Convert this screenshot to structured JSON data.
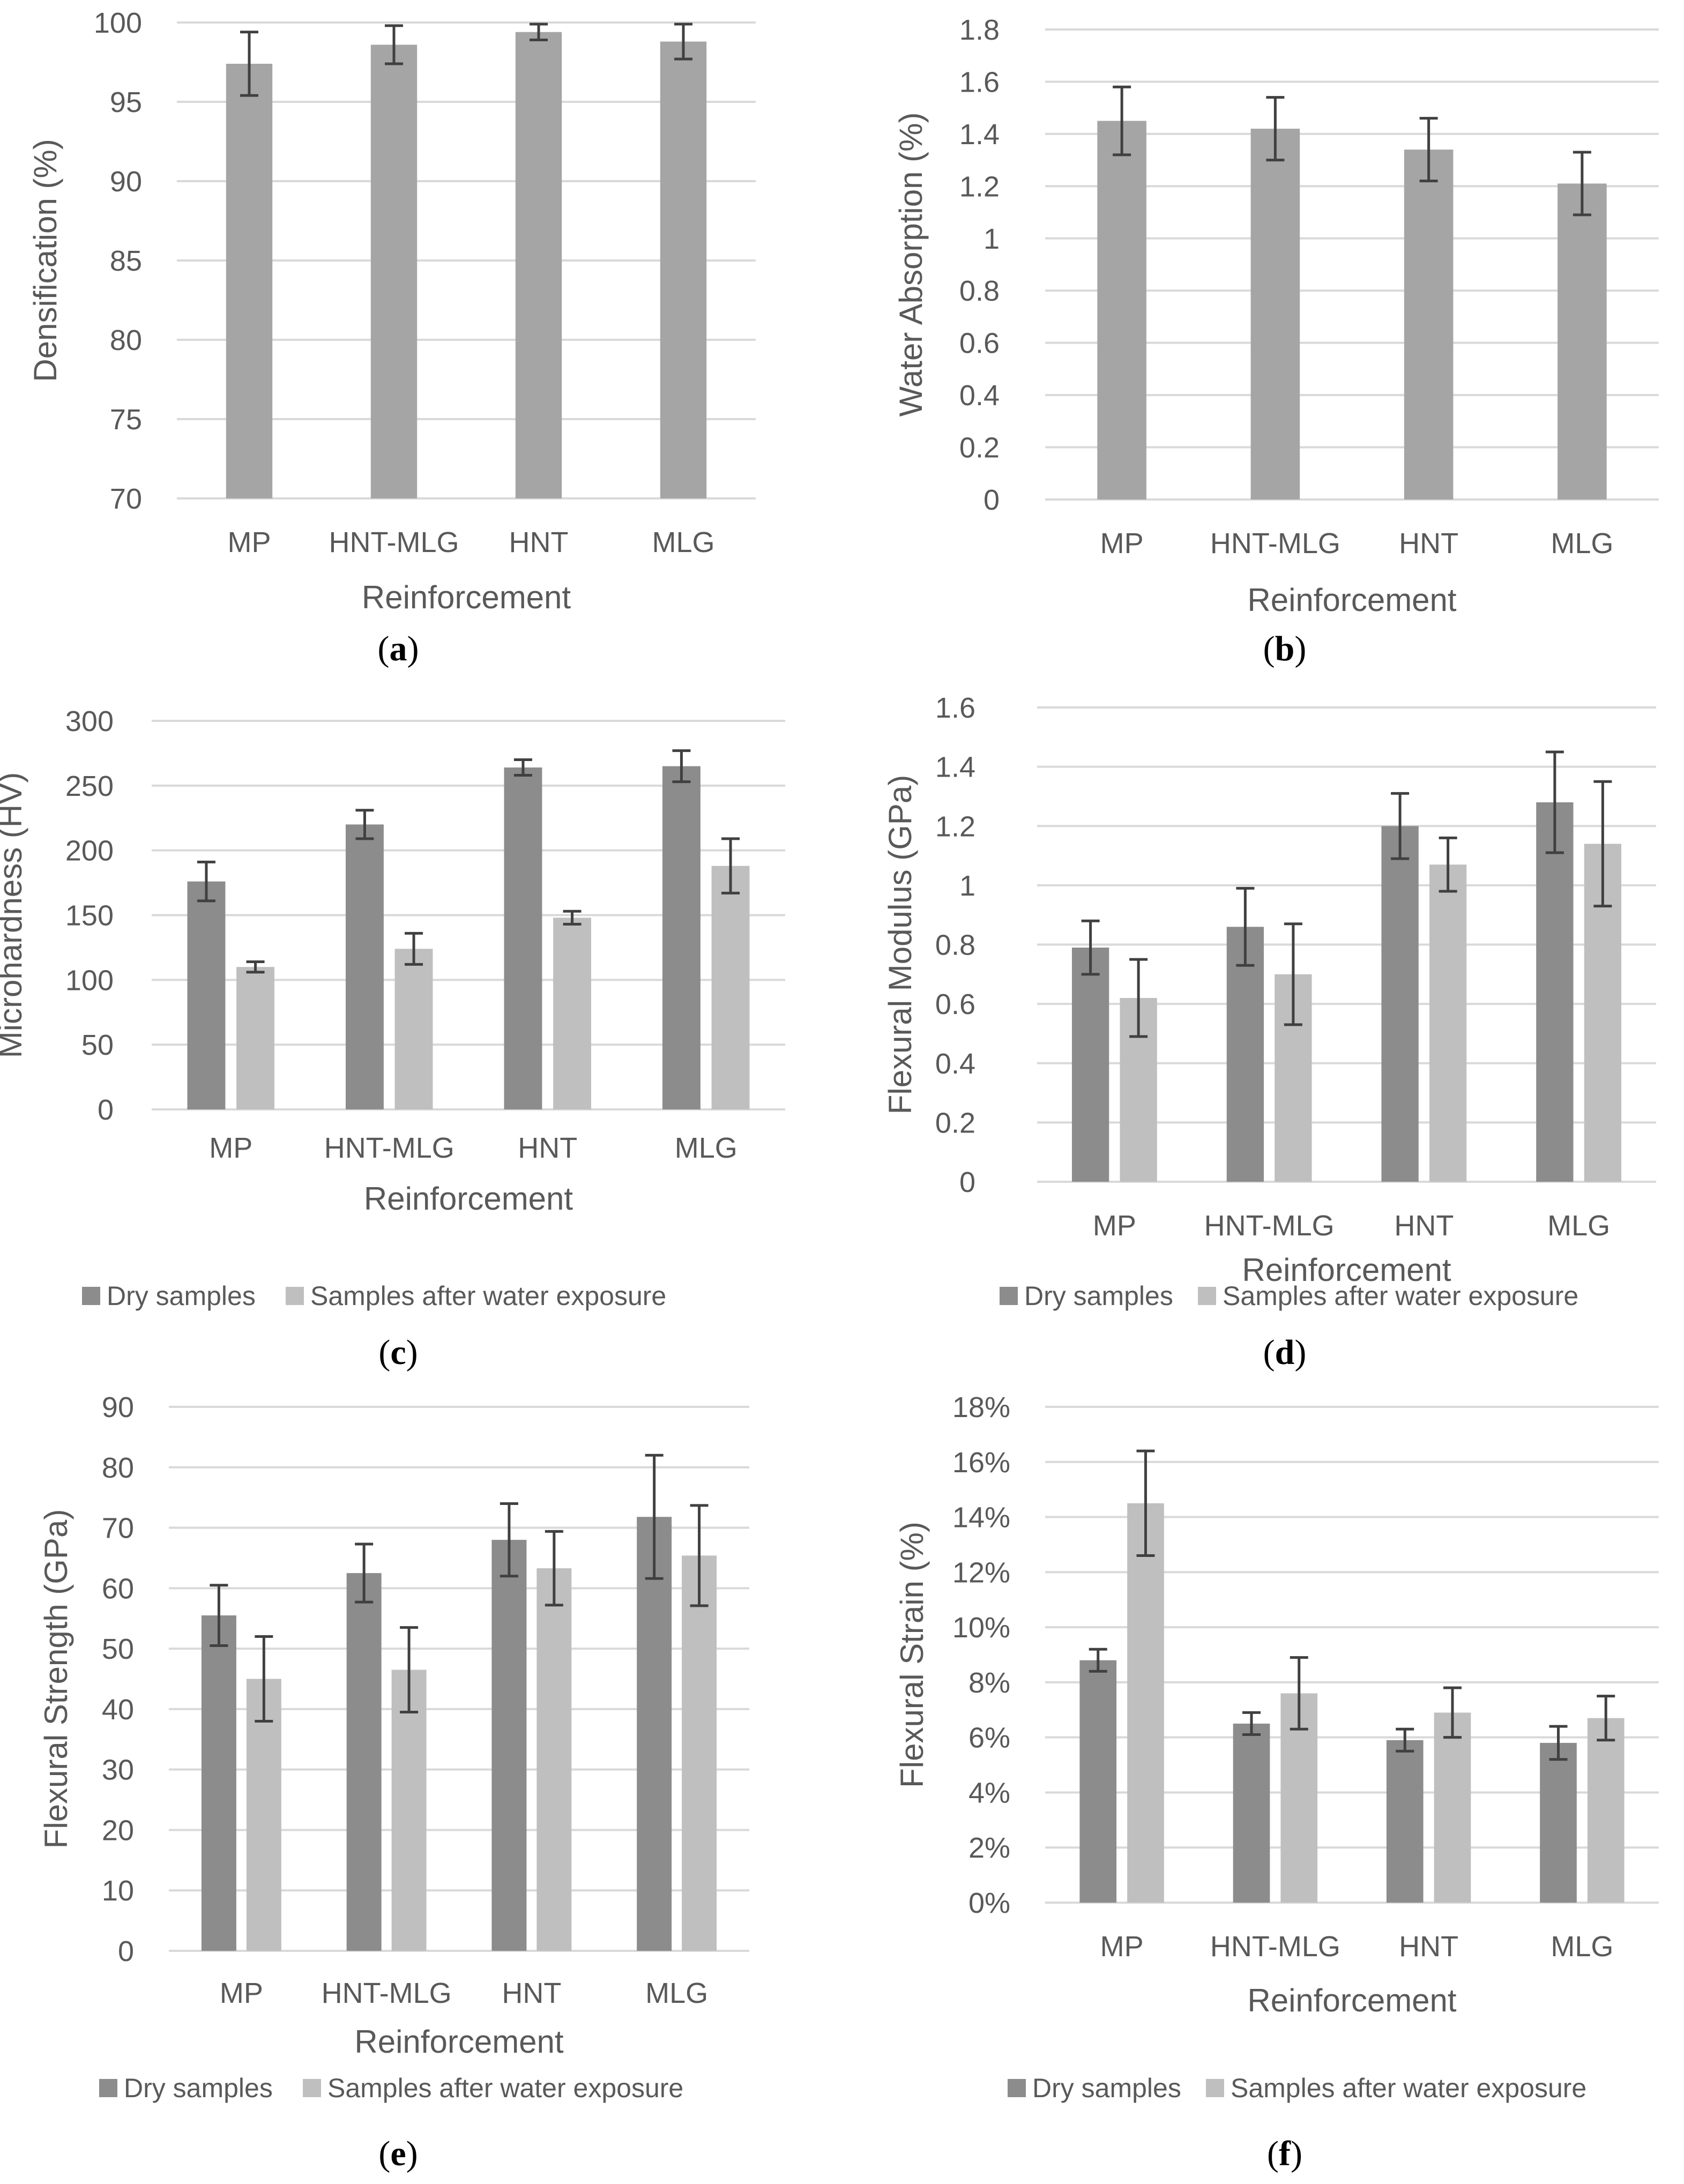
{
  "chart_data": [
    {
      "type": "bar",
      "panel": "a",
      "ylabel": "Densification (%)",
      "xlabel": "Reinforcement",
      "categories": [
        "MP",
        "HNT-MLG",
        "HNT",
        "MLG"
      ],
      "ylim": [
        70,
        100
      ],
      "ytick_step": 5,
      "yticks": [
        "70",
        "75",
        "80",
        "85",
        "90",
        "95",
        "100"
      ],
      "series": [
        {
          "name": "",
          "values": [
            97.4,
            98.6,
            99.4,
            98.8
          ],
          "errors": [
            2.0,
            1.2,
            0.5,
            1.1
          ]
        }
      ],
      "show_legend": false
    },
    {
      "type": "bar",
      "panel": "b",
      "ylabel": "Water Absorption (%)",
      "xlabel": "Reinforcement",
      "categories": [
        "MP",
        "HNT-MLG",
        "HNT",
        "MLG"
      ],
      "ylim": [
        0,
        1.8
      ],
      "ytick_step": 0.2,
      "yticks": [
        "0",
        "0.2",
        "0.4",
        "0.6",
        "0.8",
        "1",
        "1.2",
        "1.4",
        "1.6",
        "1.8"
      ],
      "series": [
        {
          "name": "",
          "values": [
            1.45,
            1.42,
            1.34,
            1.21
          ],
          "errors": [
            0.13,
            0.12,
            0.12,
            0.12
          ]
        }
      ],
      "show_legend": false
    },
    {
      "type": "bar",
      "panel": "c",
      "ylabel": "Microhardness (HV)",
      "xlabel": "Reinforcement",
      "categories": [
        "MP",
        "HNT-MLG",
        "HNT",
        "MLG"
      ],
      "ylim": [
        0,
        300
      ],
      "ytick_step": 50,
      "yticks": [
        "0",
        "50",
        "100",
        "150",
        "200",
        "250",
        "300"
      ],
      "series": [
        {
          "name": "Dry samples",
          "values": [
            176,
            220,
            264,
            265
          ],
          "errors": [
            15,
            11,
            6,
            12
          ]
        },
        {
          "name": "Samples after water exposure",
          "values": [
            110,
            124,
            148,
            188
          ],
          "errors": [
            4,
            12,
            5,
            21
          ]
        }
      ],
      "show_legend": true
    },
    {
      "type": "bar",
      "panel": "d",
      "ylabel": "Flexural Modulus (GPa)",
      "xlabel": "Reinforcement",
      "categories": [
        "MP",
        "HNT-MLG",
        "HNT",
        "MLG"
      ],
      "ylim": [
        0,
        1.6
      ],
      "ytick_step": 0.2,
      "yticks": [
        "0",
        "0.2",
        "0.4",
        "0.6",
        "0.8",
        "1",
        "1.2",
        "1.4",
        "1.6"
      ],
      "series": [
        {
          "name": "Dry samples",
          "values": [
            0.79,
            0.86,
            1.2,
            1.28
          ],
          "errors": [
            0.09,
            0.13,
            0.11,
            0.17
          ]
        },
        {
          "name": "Samples after water exposure",
          "values": [
            0.62,
            0.7,
            1.07,
            1.14
          ],
          "errors": [
            0.13,
            0.17,
            0.09,
            0.21
          ]
        }
      ],
      "show_legend": true
    },
    {
      "type": "bar",
      "panel": "e",
      "ylabel": "Flexural Strength (GPa)",
      "xlabel": "Reinforcement",
      "categories": [
        "MP",
        "HNT-MLG",
        "HNT",
        "MLG"
      ],
      "ylim": [
        0,
        90
      ],
      "ytick_step": 10,
      "yticks": [
        "0",
        "10",
        "20",
        "30",
        "40",
        "50",
        "60",
        "70",
        "80",
        "90"
      ],
      "series": [
        {
          "name": "Dry samples",
          "values": [
            55.5,
            62.5,
            68,
            71.8
          ],
          "errors": [
            5,
            4.8,
            6,
            10.2
          ]
        },
        {
          "name": "Samples after water exposure",
          "values": [
            45,
            46.5,
            63.3,
            65.4
          ],
          "errors": [
            7,
            7,
            6.1,
            8.3
          ]
        }
      ],
      "show_legend": true
    },
    {
      "type": "bar",
      "panel": "f",
      "ylabel": "Flexural Strain (%)",
      "xlabel": "Reinforcement",
      "categories": [
        "MP",
        "HNT-MLG",
        "HNT",
        "MLG"
      ],
      "ylim": [
        0,
        18
      ],
      "ytick_step": 2,
      "yticks": [
        "0%",
        "2%",
        "4%",
        "6%",
        "8%",
        "10%",
        "12%",
        "14%",
        "16%",
        "18%"
      ],
      "series": [
        {
          "name": "Dry samples",
          "values": [
            8.8,
            6.5,
            5.9,
            5.8
          ],
          "errors": [
            0.4,
            0.4,
            0.4,
            0.6
          ]
        },
        {
          "name": "Samples after water exposure",
          "values": [
            14.5,
            7.6,
            6.9,
            6.7
          ],
          "errors": [
            1.9,
            1.3,
            0.9,
            0.8
          ]
        }
      ],
      "show_legend": true
    }
  ],
  "captions": [
    {
      "open": "(",
      "letter": "a",
      "close": ")"
    },
    {
      "open": "(",
      "letter": "b",
      "close": ")"
    },
    {
      "open": "(",
      "letter": "c",
      "close": ")"
    },
    {
      "open": "(",
      "letter": "d",
      "close": ")"
    },
    {
      "open": "(",
      "letter": "e",
      "close": ")"
    },
    {
      "open": "(",
      "letter": "f",
      "close": ")"
    }
  ],
  "colors": {
    "single_bar": "#a5a5a5",
    "dry_bar": "#8c8c8c",
    "wet_bar": "#bfbfbf",
    "grid": "#d9d9d9",
    "error_bar": "#404040",
    "text": "#595959"
  }
}
